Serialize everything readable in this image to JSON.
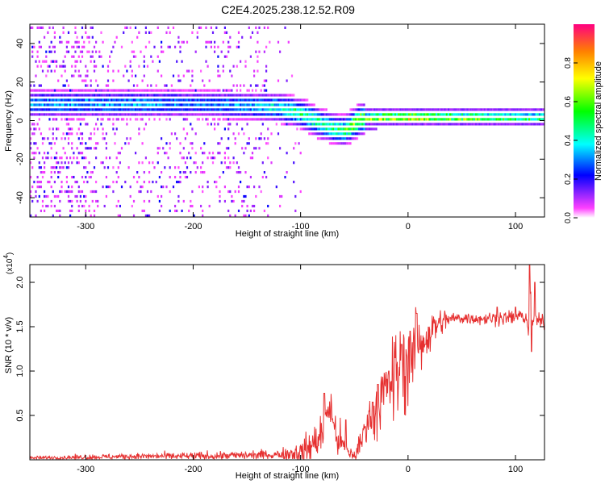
{
  "title": "C2E4.2025.238.12.52.R09",
  "chart_data": [
    {
      "type": "heatmap",
      "xlabel": "Height of straight line (km)",
      "ylabel": "Frequency (Hz)",
      "xlim": [
        -352,
        127
      ],
      "ylim": [
        -50,
        50
      ],
      "xticks": [
        -300,
        -200,
        -100,
        0,
        100
      ],
      "xtick_labels": [
        "-300",
        "-200",
        "-100",
        "0",
        "100"
      ],
      "yticks": [
        -40,
        -20,
        0,
        20,
        40
      ],
      "ytick_labels": [
        "-40",
        "-20",
        "0",
        "20",
        "40"
      ],
      "colorbar": {
        "label": "Normalized spectral amplitude",
        "range": [
          0,
          1
        ],
        "ticks": [
          0.0,
          0.2,
          0.4,
          0.6,
          0.8
        ],
        "tick_labels": [
          "0.0",
          "0.2",
          "0.4",
          "0.6",
          "0.8"
        ],
        "colors": [
          "#ff00ff",
          "#0000ff",
          "#00ffff",
          "#00ff00",
          "#ffff00",
          "#ff8000",
          "#ff0000"
        ]
      },
      "ridge": {
        "x": [
          -300,
          -250,
          -200,
          -150,
          -120,
          -100,
          -80,
          -60,
          -45,
          -30,
          0,
          50,
          100,
          127
        ],
        "freq": [
          8,
          8,
          8,
          7,
          6,
          3,
          -3,
          -6,
          0,
          1,
          1,
          1,
          1,
          1
        ],
        "amp": [
          0.35,
          0.35,
          0.3,
          0.35,
          0.45,
          0.5,
          0.5,
          0.55,
          0.7,
          0.8,
          0.9,
          0.75,
          0.65,
          0.6
        ]
      }
    },
    {
      "type": "line",
      "xlabel": "Height of straight line (km)",
      "ylabel": "SNR (10 * v/v)",
      "multiplier_label": "(x10",
      "multiplier_exp": "4",
      "multiplier_close": ")",
      "xlim": [
        -352,
        127
      ],
      "ylim": [
        0,
        2.2
      ],
      "xticks": [
        -300,
        -200,
        -100,
        0,
        100
      ],
      "xtick_labels": [
        "-300",
        "-200",
        "-100",
        "0",
        "100"
      ],
      "yticks": [
        0.5,
        1.0,
        1.5,
        2.0
      ],
      "ytick_labels": [
        "0.5",
        "1.0",
        "1.5",
        "2.0"
      ],
      "color": "#e63030",
      "series_points": [
        [
          -352,
          0.02
        ],
        [
          -300,
          0.03
        ],
        [
          -250,
          0.04
        ],
        [
          -200,
          0.04
        ],
        [
          -150,
          0.05
        ],
        [
          -120,
          0.06
        ],
        [
          -100,
          0.08
        ],
        [
          -90,
          0.15
        ],
        [
          -80,
          0.3
        ],
        [
          -75,
          0.55
        ],
        [
          -72,
          0.6
        ],
        [
          -68,
          0.3
        ],
        [
          -60,
          0.15
        ],
        [
          -55,
          0.08
        ],
        [
          -50,
          0.05
        ],
        [
          -45,
          0.15
        ],
        [
          -38,
          0.45
        ],
        [
          -30,
          0.6
        ],
        [
          -22,
          0.75
        ],
        [
          -15,
          0.9
        ],
        [
          -8,
          1.0
        ],
        [
          0,
          1.1
        ],
        [
          8,
          1.2
        ],
        [
          15,
          1.35
        ],
        [
          25,
          1.5
        ],
        [
          35,
          1.58
        ],
        [
          50,
          1.6
        ],
        [
          70,
          1.59
        ],
        [
          90,
          1.6
        ],
        [
          100,
          1.6
        ],
        [
          105,
          1.62
        ],
        [
          110,
          1.6
        ],
        [
          112,
          1.45
        ],
        [
          114,
          1.9
        ],
        [
          116,
          1.5
        ],
        [
          118,
          1.7
        ],
        [
          120,
          1.56
        ],
        [
          127,
          1.56
        ]
      ],
      "noise": [
        [
          -352,
          0.01
        ],
        [
          -120,
          0.03
        ],
        [
          -90,
          0.1
        ],
        [
          -78,
          0.12
        ],
        [
          -68,
          0.12
        ],
        [
          -55,
          0.05
        ],
        [
          -45,
          0.08
        ],
        [
          -35,
          0.14
        ],
        [
          -20,
          0.2
        ],
        [
          -5,
          0.28
        ],
        [
          10,
          0.22
        ],
        [
          25,
          0.1
        ],
        [
          40,
          0.035
        ],
        [
          100,
          0.04
        ],
        [
          127,
          0.04
        ]
      ],
      "spikes": [
        [
          -78,
          0.75
        ],
        [
          -58,
          0.45
        ],
        [
          -33,
          0.65
        ],
        [
          -28,
          0.85
        ],
        [
          -18,
          1.0
        ],
        [
          -12,
          1.15
        ],
        [
          -6,
          1.3
        ],
        [
          2,
          1.45
        ],
        [
          8,
          1.65
        ],
        [
          16,
          1.3
        ],
        [
          83,
          1.72
        ],
        [
          100,
          1.72
        ],
        [
          113,
          2.2
        ],
        [
          115,
          1.22
        ],
        [
          118,
          2.0
        ]
      ]
    }
  ]
}
